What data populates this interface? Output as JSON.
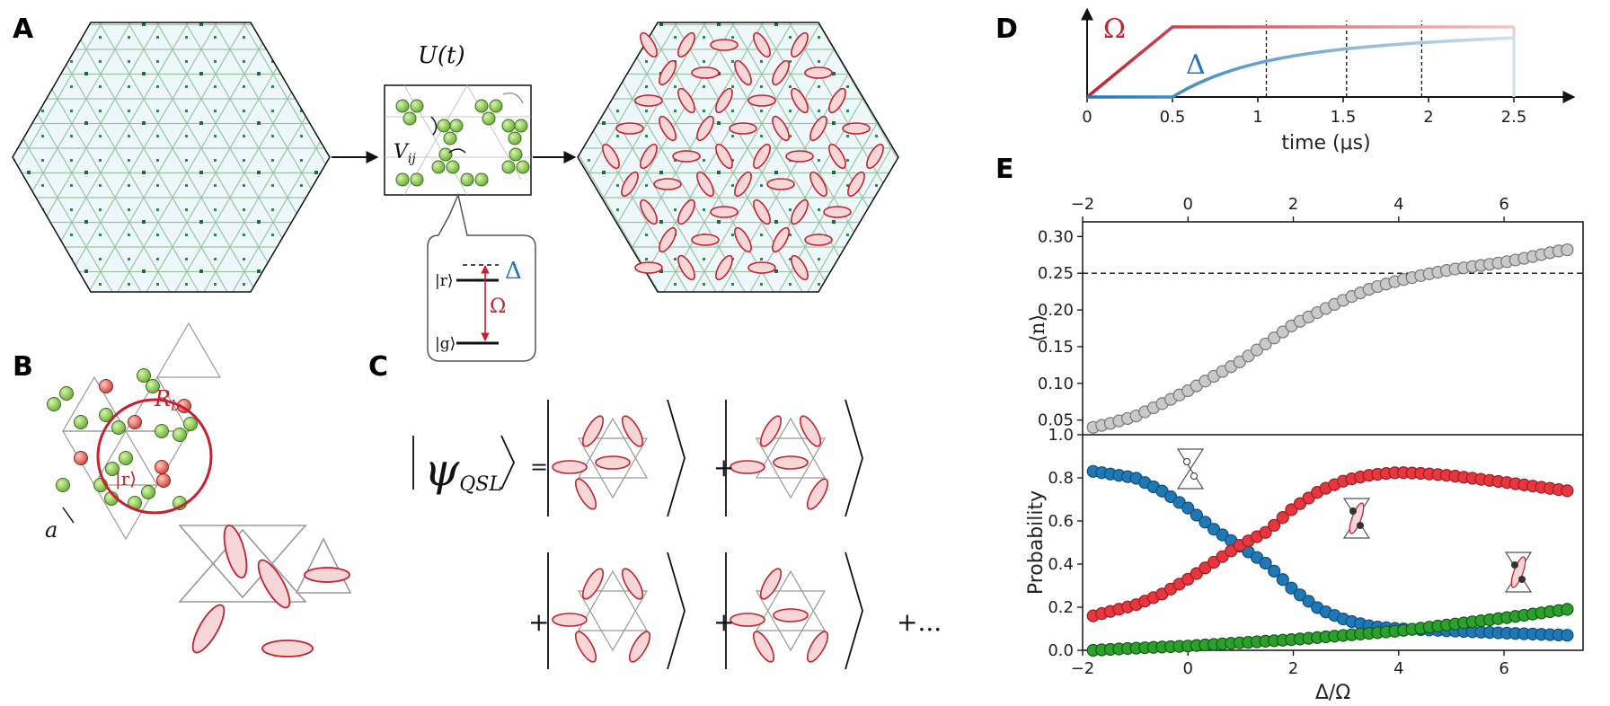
{
  "panels": {
    "A": "A",
    "B": "B",
    "C": "C",
    "D": "D",
    "E": "E"
  },
  "panel_a": {
    "evolution_label": "U(t)",
    "interaction_label": "V",
    "interaction_sub": "ij",
    "ket_r": "|r⟩",
    "ket_g": "|g⟩",
    "omega": "Ω",
    "delta": "Δ"
  },
  "panel_b": {
    "blockade_radius": "R",
    "blockade_radius_sub": "b",
    "ket_r": "|r⟩",
    "spacing": "a"
  },
  "panel_c": {
    "psi": "ψ",
    "psi_sub": "QSL",
    "equals": "=",
    "plus": "+",
    "ellipsis": "+..."
  },
  "colors": {
    "red": "#c8202f",
    "blue": "#1f77b4",
    "green": "#2ca02c",
    "gray": "#9e9e9e",
    "hexfill": "#eef8fb"
  },
  "chart_data": [
    {
      "id": "D",
      "type": "line",
      "xlabel": "time (μs)",
      "ticks": [
        "0",
        "0.5",
        "1",
        "1.5",
        "2",
        "2.5"
      ],
      "tick_values": [
        0,
        0.5,
        1,
        1.5,
        2,
        2.5
      ],
      "xlim": [
        0,
        2.8
      ],
      "series": [
        {
          "name": "Ω",
          "label": "Ω",
          "color": "#c8202f",
          "x": [
            0,
            0.5,
            2.5
          ],
          "y": [
            0,
            1,
            1
          ]
        },
        {
          "name": "Δ",
          "label": "Δ",
          "color": "#1f77b4",
          "x": [
            0,
            0.5,
            1.0,
            1.5,
            2.0,
            2.5
          ],
          "y": [
            0,
            0,
            0.55,
            0.68,
            0.78,
            0.88
          ]
        }
      ],
      "dashed_times": [
        1.05,
        1.52,
        1.96
      ]
    },
    {
      "id": "E-top",
      "type": "scatter",
      "ylabel": "⟨n⟩",
      "xlim": [
        -2,
        7.5
      ],
      "ylim": [
        0.03,
        0.32
      ],
      "x_ticks": [
        "−2",
        "0",
        "2",
        "4",
        "6"
      ],
      "x_tick_values": [
        -2,
        0,
        2,
        4,
        6
      ],
      "y_ticks": [
        "0.05",
        "0.10",
        "0.15",
        "0.20",
        "0.25",
        "0.30"
      ],
      "y_tick_values": [
        0.05,
        0.1,
        0.15,
        0.2,
        0.25,
        0.3
      ],
      "reference_line": 0.25,
      "series": [
        {
          "name": "⟨n⟩",
          "color": "#b0b0b0",
          "x": [
            -1.8,
            -1.5,
            -1.0,
            -0.5,
            0.0,
            0.5,
            1.0,
            1.5,
            2.0,
            2.5,
            3.0,
            3.5,
            4.0,
            4.5,
            5.0,
            5.5,
            6.0,
            6.5,
            7.0,
            7.2
          ],
          "y": [
            0.04,
            0.045,
            0.055,
            0.072,
            0.09,
            0.11,
            0.13,
            0.155,
            0.18,
            0.198,
            0.215,
            0.23,
            0.24,
            0.248,
            0.255,
            0.26,
            0.265,
            0.272,
            0.28,
            0.282
          ]
        }
      ]
    },
    {
      "id": "E-bottom",
      "type": "scatter",
      "xlabel": "Δ/Ω",
      "ylabel": "Probability",
      "xlim": [
        -2,
        7.5
      ],
      "ylim": [
        0,
        1
      ],
      "x_ticks": [
        "−2",
        "0",
        "2",
        "4",
        "6"
      ],
      "x_tick_values": [
        -2,
        0,
        2,
        4,
        6
      ],
      "y_ticks": [
        "0.0",
        "0.2",
        "0.4",
        "0.6",
        "0.8",
        "1.0"
      ],
      "y_tick_values": [
        0,
        0.2,
        0.4,
        0.6,
        0.8,
        1.0
      ],
      "series": [
        {
          "name": "blue",
          "color": "#1f77b4",
          "x": [
            -1.8,
            -1.0,
            -0.5,
            0.0,
            0.5,
            1.0,
            1.5,
            2.0,
            2.5,
            3.0,
            3.5,
            4.0,
            4.5,
            5.0,
            6.0,
            7.2
          ],
          "y": [
            0.83,
            0.8,
            0.74,
            0.66,
            0.56,
            0.48,
            0.4,
            0.28,
            0.19,
            0.14,
            0.11,
            0.1,
            0.095,
            0.09,
            0.08,
            0.07
          ]
        },
        {
          "name": "red",
          "color": "#e8363e",
          "x": [
            -1.8,
            -1.0,
            -0.5,
            0.0,
            0.5,
            1.0,
            1.5,
            2.0,
            2.5,
            3.0,
            3.5,
            4.0,
            4.5,
            5.0,
            6.0,
            7.2
          ],
          "y": [
            0.16,
            0.21,
            0.26,
            0.33,
            0.41,
            0.49,
            0.55,
            0.66,
            0.74,
            0.79,
            0.815,
            0.825,
            0.82,
            0.81,
            0.78,
            0.74
          ]
        },
        {
          "name": "green",
          "color": "#2ca02c",
          "x": [
            -1.8,
            -1.0,
            0.0,
            1.0,
            2.0,
            3.0,
            4.0,
            5.0,
            6.0,
            7.2
          ],
          "y": [
            0.0,
            0.01,
            0.02,
            0.035,
            0.05,
            0.07,
            0.09,
            0.12,
            0.15,
            0.19
          ]
        }
      ]
    }
  ]
}
